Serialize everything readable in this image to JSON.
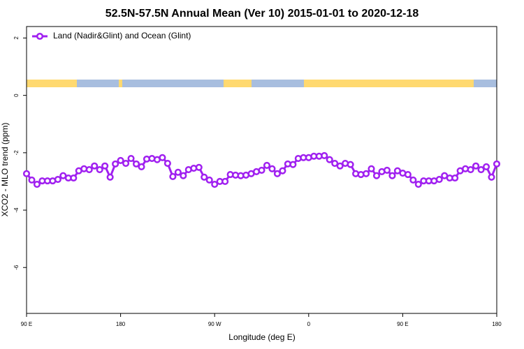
{
  "chart_data": {
    "type": "line",
    "title": "52.5N-57.5N Annual Mean (Ver 10)   2015-01-01 to 2020-12-18",
    "xlabel": "Longitude (deg E)",
    "ylabel": "XCO2 - MLO trend (ppm)",
    "legend": "top-left",
    "xlim": [
      90,
      540
    ],
    "ylim": [
      -7.6,
      2.4
    ],
    "xticks": [
      {
        "value": 90,
        "label": "90 E"
      },
      180,
      {
        "value": 270,
        "label": "90 W"
      },
      {
        "value": 360,
        "label": "0"
      },
      {
        "value": 450,
        "label": "90 E"
      },
      {
        "value": 540,
        "label": "180"
      }
    ],
    "yticks": [
      2,
      0,
      -2,
      -4,
      -6
    ],
    "x": [
      90,
      95,
      100,
      105,
      110,
      115,
      120,
      125,
      130,
      135,
      140,
      145,
      150,
      155,
      160,
      165,
      170,
      175,
      180,
      185,
      190,
      195,
      200,
      205,
      210,
      215,
      220,
      225,
      230,
      235,
      240,
      245,
      250,
      255,
      260,
      265,
      270,
      275,
      280,
      285,
      290,
      295,
      300,
      305,
      310,
      315,
      320,
      325,
      330,
      335,
      340,
      345,
      350,
      355,
      360,
      365,
      370,
      375,
      380,
      385,
      390,
      395,
      400,
      405,
      410,
      415,
      420,
      425,
      430,
      435,
      440,
      445,
      450,
      455,
      460,
      465,
      470,
      475,
      480,
      485,
      490,
      495,
      500,
      505,
      510,
      515,
      520,
      525,
      530,
      535,
      540
    ],
    "series": [
      {
        "name": "Land (Nadir&Glint) and Ocean (Glint)",
        "color": "#a020f0",
        "values": [
          -2.73,
          -2.95,
          -3.1,
          -2.98,
          -2.98,
          -2.98,
          -2.93,
          -2.8,
          -2.88,
          -2.88,
          -2.63,
          -2.56,
          -2.59,
          -2.46,
          -2.59,
          -2.46,
          -2.85,
          -2.39,
          -2.27,
          -2.37,
          -2.2,
          -2.39,
          -2.49,
          -2.22,
          -2.2,
          -2.24,
          -2.17,
          -2.37,
          -2.83,
          -2.68,
          -2.8,
          -2.59,
          -2.54,
          -2.51,
          -2.85,
          -2.95,
          -3.1,
          -3.0,
          -3.0,
          -2.76,
          -2.78,
          -2.8,
          -2.78,
          -2.73,
          -2.66,
          -2.61,
          -2.44,
          -2.56,
          -2.73,
          -2.63,
          -2.39,
          -2.41,
          -2.2,
          -2.17,
          -2.17,
          -2.12,
          -2.12,
          -2.1,
          -2.24,
          -2.37,
          -2.46,
          -2.37,
          -2.41,
          -2.73,
          -2.76,
          -2.73,
          -2.56,
          -2.8,
          -2.66,
          -2.61,
          -2.8,
          -2.63,
          -2.71,
          -2.76,
          -2.95,
          -3.1,
          -2.98,
          -2.98,
          -2.98,
          -2.93,
          -2.8,
          -2.88,
          -2.88,
          -2.63,
          -2.56,
          -2.59,
          -2.46,
          -2.59,
          -2.49,
          -2.85,
          -2.39
        ]
      }
    ]
  }
}
